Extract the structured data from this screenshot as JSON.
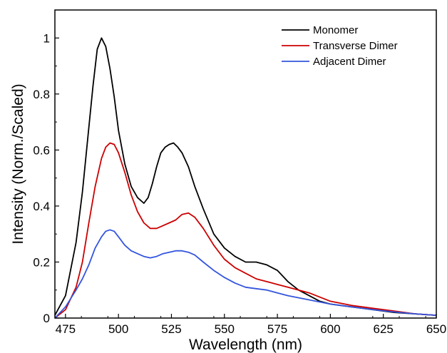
{
  "chart_data": {
    "type": "line",
    "title": "",
    "xlabel": "Wavelength (nm)",
    "ylabel": "Intensity (Norm./Scaled)",
    "xlim": [
      470,
      650
    ],
    "ylim": [
      0,
      1.1
    ],
    "x_ticks": [
      475,
      500,
      525,
      550,
      575,
      600,
      625,
      650
    ],
    "y_ticks": [
      0,
      0.2,
      0.4,
      0.6,
      0.8,
      1
    ],
    "x_tick_labels": [
      "475",
      "500",
      "525",
      "550",
      "575",
      "600",
      "625",
      "650"
    ],
    "y_tick_labels": [
      "0",
      "0.2",
      "0.4",
      "0.6",
      "0.8",
      "1"
    ],
    "grid": false,
    "legend_position": "top-right",
    "series": [
      {
        "name": "Monomer",
        "color": "#000000",
        "x": [
          470,
          475,
          480,
          483,
          486,
          488,
          490,
          492,
          494,
          496,
          498,
          500,
          503,
          506,
          509,
          512,
          514,
          516,
          518,
          520,
          522,
          524,
          526,
          528,
          530,
          533,
          536,
          540,
          545,
          550,
          555,
          560,
          565,
          570,
          575,
          580,
          585,
          590,
          595,
          600,
          610,
          620,
          630,
          640,
          650
        ],
        "values": [
          0.01,
          0.08,
          0.27,
          0.45,
          0.68,
          0.83,
          0.96,
          1.0,
          0.97,
          0.89,
          0.79,
          0.67,
          0.55,
          0.47,
          0.43,
          0.41,
          0.43,
          0.48,
          0.54,
          0.59,
          0.61,
          0.62,
          0.625,
          0.61,
          0.59,
          0.54,
          0.47,
          0.39,
          0.3,
          0.25,
          0.22,
          0.2,
          0.2,
          0.19,
          0.17,
          0.13,
          0.1,
          0.08,
          0.06,
          0.05,
          0.04,
          0.03,
          0.02,
          0.015,
          0.01
        ]
      },
      {
        "name": "Transverse Dimer",
        "color": "#cc0000",
        "x": [
          470,
          475,
          480,
          483,
          486,
          489,
          492,
          494,
          496,
          498,
          500,
          503,
          506,
          509,
          512,
          515,
          518,
          521,
          524,
          527,
          530,
          533,
          536,
          540,
          545,
          550,
          555,
          560,
          565,
          570,
          575,
          580,
          590,
          600,
          610,
          620,
          630,
          640,
          650
        ],
        "values": [
          0.0,
          0.03,
          0.11,
          0.2,
          0.34,
          0.47,
          0.57,
          0.61,
          0.625,
          0.62,
          0.59,
          0.52,
          0.44,
          0.38,
          0.34,
          0.32,
          0.32,
          0.33,
          0.34,
          0.35,
          0.37,
          0.375,
          0.36,
          0.32,
          0.26,
          0.21,
          0.18,
          0.16,
          0.14,
          0.13,
          0.12,
          0.11,
          0.09,
          0.06,
          0.045,
          0.035,
          0.025,
          0.015,
          0.01
        ]
      },
      {
        "name": "Adjacent Dimer",
        "color": "#3355dd",
        "x": [
          470,
          475,
          480,
          483,
          486,
          489,
          492,
          494,
          496,
          498,
          500,
          503,
          506,
          509,
          512,
          515,
          518,
          521,
          524,
          527,
          530,
          533,
          536,
          540,
          545,
          550,
          555,
          560,
          565,
          570,
          575,
          580,
          590,
          600,
          610,
          620,
          630,
          640,
          650
        ],
        "values": [
          0.0,
          0.04,
          0.1,
          0.14,
          0.19,
          0.25,
          0.29,
          0.31,
          0.315,
          0.31,
          0.29,
          0.26,
          0.24,
          0.23,
          0.22,
          0.215,
          0.22,
          0.23,
          0.235,
          0.24,
          0.24,
          0.235,
          0.225,
          0.2,
          0.17,
          0.145,
          0.125,
          0.11,
          0.105,
          0.1,
          0.09,
          0.08,
          0.065,
          0.05,
          0.04,
          0.03,
          0.022,
          0.015,
          0.01
        ]
      }
    ]
  }
}
